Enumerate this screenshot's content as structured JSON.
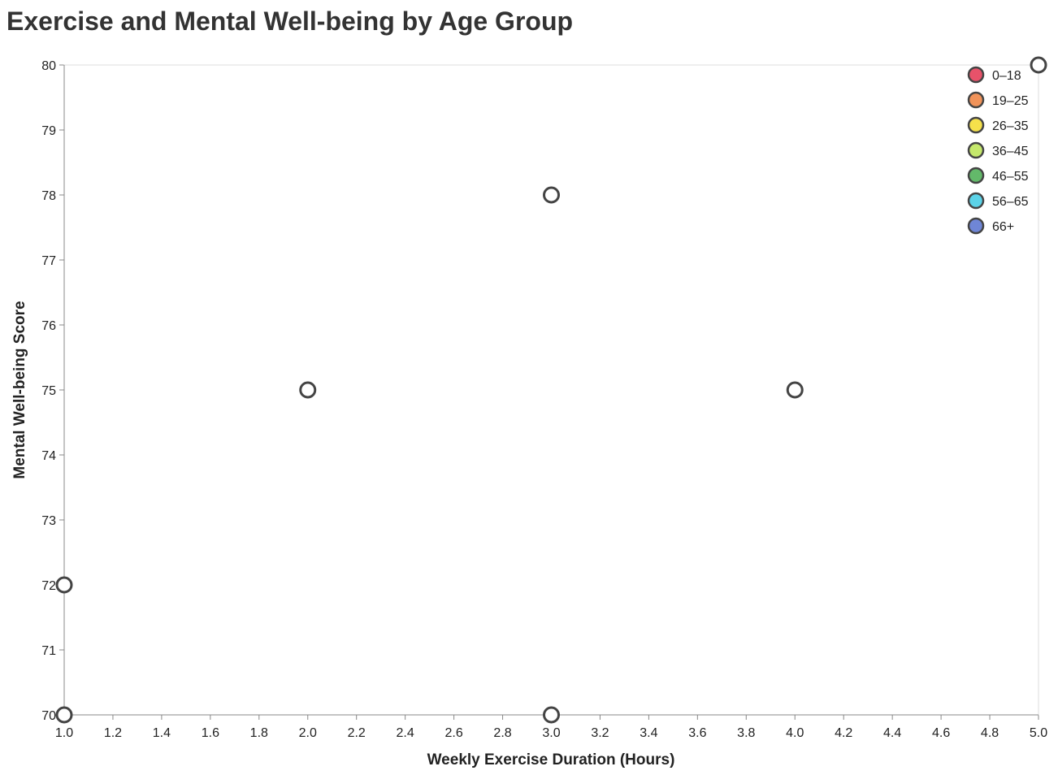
{
  "chart_data": {
    "type": "scatter",
    "title": "Exercise and Mental Well-being by Age Group",
    "xlabel": "Weekly Exercise Duration (Hours)",
    "ylabel": "Mental Well-being Score",
    "xlim": [
      1.0,
      5.0
    ],
    "ylim": [
      70,
      80
    ],
    "x_ticks": [
      "1.0",
      "1.2",
      "1.4",
      "1.6",
      "1.8",
      "2.0",
      "2.2",
      "2.4",
      "2.6",
      "2.8",
      "3.0",
      "3.2",
      "3.4",
      "3.6",
      "3.8",
      "4.0",
      "4.2",
      "4.4",
      "4.6",
      "4.8",
      "5.0"
    ],
    "y_ticks": [
      "70",
      "71",
      "72",
      "73",
      "74",
      "75",
      "76",
      "77",
      "78",
      "79",
      "80"
    ],
    "grid": false,
    "legend_position": "top-right",
    "legend": [
      {
        "label": "0–18",
        "color": "#e8526a"
      },
      {
        "label": "19–25",
        "color": "#f0935a"
      },
      {
        "label": "26–35",
        "color": "#f5e14b"
      },
      {
        "label": "36–45",
        "color": "#c5e86c"
      },
      {
        "label": "46–55",
        "color": "#63b96a"
      },
      {
        "label": "56–65",
        "color": "#5cd3e8"
      },
      {
        "label": "66+",
        "color": "#6f86d6"
      }
    ],
    "points": [
      {
        "x": 1.0,
        "y": 70
      },
      {
        "x": 1.0,
        "y": 72
      },
      {
        "x": 2.0,
        "y": 75
      },
      {
        "x": 3.0,
        "y": 78
      },
      {
        "x": 3.0,
        "y": 70
      },
      {
        "x": 4.0,
        "y": 75
      },
      {
        "x": 5.0,
        "y": 80
      }
    ],
    "point_stroke": "#444444",
    "point_fill": "#ffffff"
  }
}
